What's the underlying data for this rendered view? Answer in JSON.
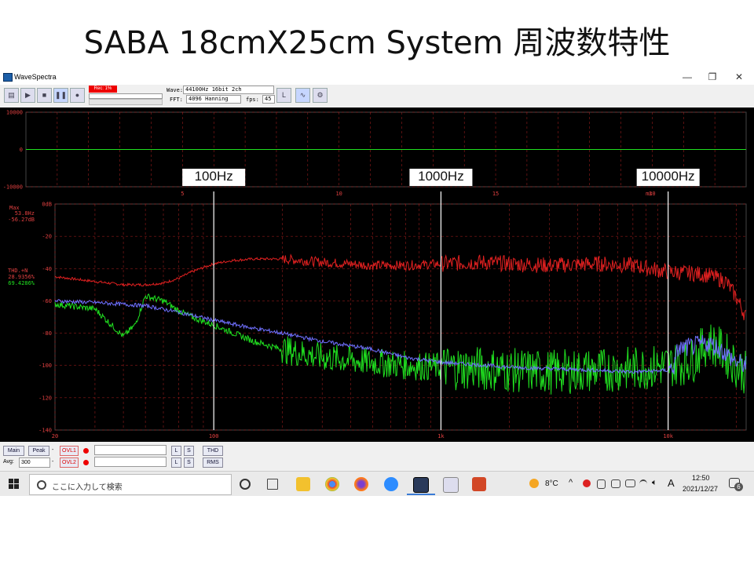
{
  "slide": {
    "title": "SABA  18cmX25cm System 周波数特性"
  },
  "window": {
    "title": "WaveSpectra",
    "min": "—",
    "max": "❐",
    "close": "✕"
  },
  "toolbar": {
    "rec_label": "Rec: 1%",
    "wave_label": "Wave:",
    "wave_value": "44100Hz 16bit 2ch",
    "fft_label": "FFT:",
    "fft_value": "4096 Hanning",
    "fps_label": "fps:",
    "fps_value": "45"
  },
  "annotations": {
    "f100": "100Hz",
    "f1000": "1000Hz",
    "f10000": "10000Hz"
  },
  "readouts": {
    "max_label": "Max",
    "max_freq": "53.8Hz",
    "max_db": "-56.27dB",
    "thd_label": "THD.+N",
    "thd_a": "28.9356%",
    "thd_b": "69.4286%"
  },
  "bottombar": {
    "main": "Main",
    "peak": "Peak",
    "ovl1": "OVL1",
    "ovl2": "OVL2",
    "l": "L",
    "s": "S",
    "thd": "THD",
    "rms": "RMS",
    "avg_label": "Avg:",
    "avg_value": "300",
    "dash": "-"
  },
  "taskbar": {
    "search_placeholder": "ここに入力して検索",
    "weather": "8°C",
    "ime": "A",
    "time": "12:50",
    "date": "2021/12/27",
    "notif_count": "6"
  },
  "colors": {
    "left": "#e02020",
    "right": "#20e020",
    "avg": "#7070ff",
    "grid": "#b02020",
    "axis_text": "#e04040"
  },
  "chart_data": [
    {
      "type": "line",
      "title": "",
      "xlabel": "ms",
      "ylabel": "",
      "xlim": [
        0,
        23
      ],
      "ylim": [
        -10000,
        10000
      ],
      "x_ticks": [
        5,
        10,
        15,
        20
      ],
      "y_ticks": [
        10000,
        0,
        -10000
      ],
      "grid": true,
      "series": [
        {
          "values": [
            0,
            0
          ]
        }
      ]
    },
    {
      "type": "line",
      "title": "",
      "x_scale": "log",
      "xlim": [
        20,
        22050
      ],
      "ylim": [
        -140,
        0
      ],
      "x_ticks": [
        "20",
        "100",
        "1k",
        "10k"
      ],
      "x_tick_values": [
        20,
        100,
        1000,
        10000
      ],
      "y_ticks": [
        "0dB",
        "-20",
        "-40",
        "-60",
        "-80",
        "-100",
        "-120",
        "-140"
      ],
      "y_tick_values": [
        0,
        -20,
        -40,
        -60,
        -80,
        -100,
        -120,
        -140
      ],
      "grid": true,
      "markers_hz": [
        100,
        1000,
        10000
      ],
      "series": [
        {
          "color": "#e02020",
          "x": [
            20,
            30,
            40,
            50,
            60,
            70,
            80,
            100,
            120,
            150,
            200,
            300,
            500,
            700,
            1000,
            1500,
            2000,
            3000,
            5000,
            7000,
            10000,
            13000,
            15000,
            18000,
            20000,
            22050
          ],
          "y": [
            -45,
            -48,
            -50,
            -50,
            -49,
            -46,
            -42,
            -37,
            -35,
            -34,
            -34,
            -36,
            -38,
            -38,
            -37,
            -36,
            -37,
            -38,
            -37,
            -38,
            -42,
            -43,
            -44,
            -48,
            -58,
            -70
          ]
        },
        {
          "color": "#20e020",
          "x": [
            20,
            30,
            40,
            45,
            50,
            60,
            70,
            80,
            100,
            150,
            200,
            300,
            500,
            700,
            1000,
            1500,
            2000,
            3000,
            5000,
            7000,
            10000,
            12000,
            13000,
            15000,
            17000,
            20000,
            22050
          ],
          "y": [
            -62,
            -65,
            -82,
            -75,
            -57,
            -60,
            -66,
            -70,
            -75,
            -85,
            -90,
            -95,
            -98,
            -100,
            -101,
            -102,
            -103,
            -104,
            -103,
            -102,
            -100,
            -98,
            -96,
            -85,
            -90,
            -100,
            -105
          ]
        },
        {
          "color": "#7070ff",
          "x": [
            20,
            30,
            50,
            70,
            100,
            150,
            200,
            300,
            500,
            700,
            1000,
            2000,
            3000,
            5000,
            7000,
            10000,
            10700,
            11000,
            13000,
            15000,
            17000,
            20000,
            22050
          ],
          "y": [
            -60,
            -61,
            -63,
            -67,
            -72,
            -77,
            -80,
            -85,
            -90,
            -95,
            -98,
            -101,
            -102,
            -103,
            -104,
            -103,
            -100,
            -90,
            -88,
            -86,
            -90,
            -98,
            -100
          ]
        }
      ]
    }
  ]
}
